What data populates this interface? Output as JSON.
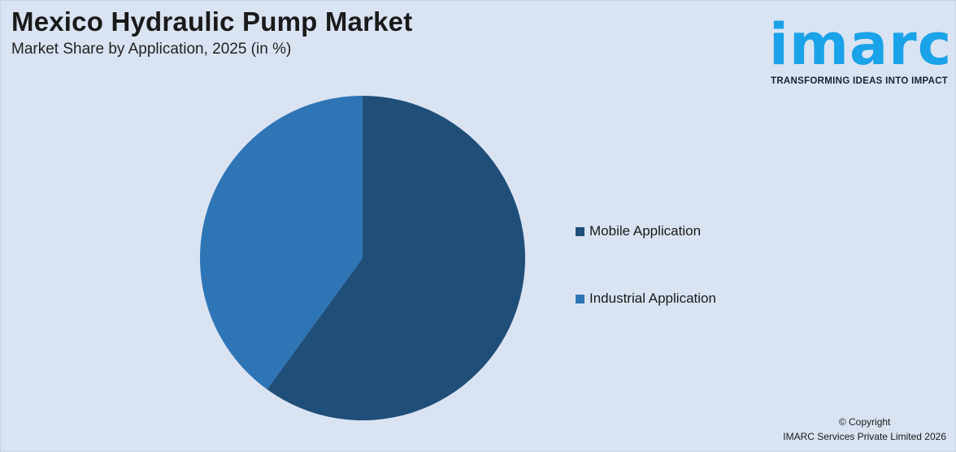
{
  "header": {
    "title": "Mexico Hydraulic Pump Market",
    "subtitle": "Market Share by Application, 2025 (in %)"
  },
  "logo": {
    "wordmark": "imarc",
    "tagline": "TRANSFORMING IDEAS INTO IMPACT",
    "color": "#1aa3e8"
  },
  "chart_data": {
    "type": "pie",
    "categories": [
      "Mobile Application",
      "Industrial Application"
    ],
    "values": [
      60,
      40
    ],
    "colors": [
      "#1f4e79",
      "#2e75b6"
    ],
    "legend_position": "right",
    "start_angle": "top, clockwise"
  },
  "footer": {
    "copyright_line1": "© Copyright",
    "copyright_line2": "IMARC Services Private Limited 2026"
  }
}
